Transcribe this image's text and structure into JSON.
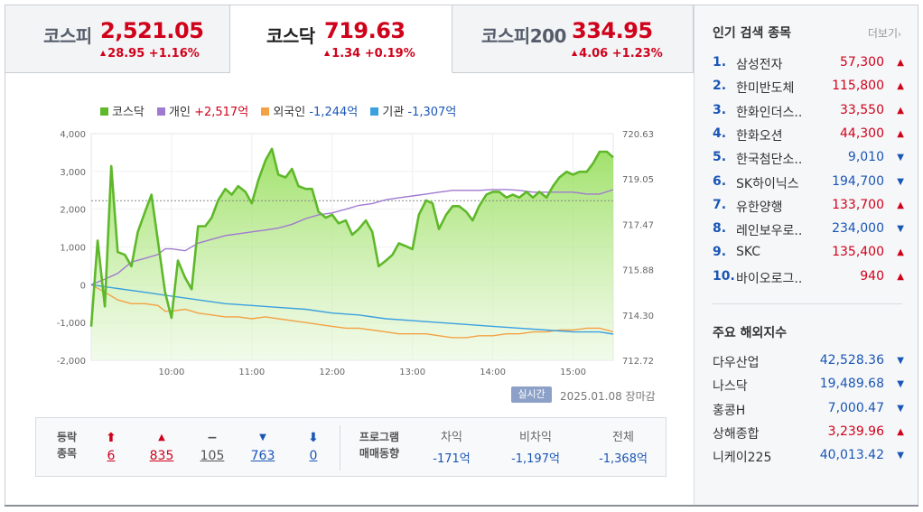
{
  "tabs": [
    {
      "name": "코스피",
      "value": "2,521.05",
      "change": "28.95 +1.16%",
      "dir": "up",
      "active": false
    },
    {
      "name": "코스닥",
      "value": "719.63",
      "change": "1.34 +0.19%",
      "dir": "up",
      "active": true
    },
    {
      "name": "코스피200",
      "value": "334.95",
      "change": "4.06 +1.23%",
      "dir": "up",
      "active": false
    }
  ],
  "legend": {
    "kosdaq": {
      "label": "코스닥",
      "color": "#5fb82a"
    },
    "individual": {
      "label": "개인",
      "value": "+2,517억",
      "color": "#a07ad0"
    },
    "foreign": {
      "label": "외국인",
      "value": "-1,244억",
      "color": "#f3a144"
    },
    "institution": {
      "label": "기관",
      "value": "-1,307억",
      "color": "#3aa0e0"
    }
  },
  "chart_data": {
    "type": "line",
    "x_ticks": [
      "10:00",
      "11:00",
      "12:00",
      "13:00",
      "14:00",
      "15:00"
    ],
    "y_left_ticks": [
      "4,000",
      "3,000",
      "2,000",
      "1,000",
      "0",
      "-1,000",
      "-2,000"
    ],
    "y_left_range": [
      -2000,
      4000
    ],
    "y_right_ticks": [
      "720.63",
      "719.05",
      "717.47",
      "715.88",
      "714.30",
      "712.72"
    ],
    "y_right_range": [
      712.72,
      720.63
    ],
    "reference_level": 718.29,
    "series": [
      {
        "name": "코스닥",
        "axis": "right",
        "color": "#5fb82a",
        "x": [
          9.0,
          9.08,
          9.17,
          9.25,
          9.33,
          9.42,
          9.5,
          9.58,
          9.67,
          9.75,
          9.83,
          9.92,
          10.0,
          10.08,
          10.17,
          10.25,
          10.33,
          10.42,
          10.5,
          10.58,
          10.67,
          10.75,
          10.83,
          10.92,
          11.0,
          11.08,
          11.17,
          11.25,
          11.33,
          11.42,
          11.5,
          11.58,
          11.67,
          11.75,
          11.83,
          11.92,
          12.0,
          12.08,
          12.17,
          12.25,
          12.33,
          12.42,
          12.5,
          12.58,
          12.67,
          12.75,
          12.83,
          12.92,
          13.0,
          13.08,
          13.17,
          13.25,
          13.33,
          13.42,
          13.5,
          13.58,
          13.67,
          13.75,
          13.83,
          13.92,
          14.0,
          14.08,
          14.17,
          14.25,
          14.33,
          14.42,
          14.5,
          14.58,
          14.67,
          14.75,
          14.83,
          14.92,
          15.0,
          15.08,
          15.17,
          15.25,
          15.33,
          15.42,
          15.5
        ],
        "y": [
          713.9,
          716.9,
          714.6,
          719.5,
          716.5,
          716.4,
          716.0,
          717.2,
          717.9,
          718.5,
          716.9,
          715.1,
          714.2,
          716.2,
          715.6,
          715.2,
          717.4,
          717.4,
          717.7,
          718.3,
          718.7,
          718.5,
          718.8,
          718.6,
          718.2,
          719.0,
          719.7,
          720.1,
          719.2,
          719.1,
          719.4,
          718.8,
          718.7,
          718.7,
          717.9,
          717.7,
          717.8,
          717.5,
          717.6,
          717.1,
          717.3,
          717.6,
          717.2,
          716.0,
          716.2,
          716.4,
          716.8,
          716.7,
          716.6,
          717.8,
          718.3,
          718.2,
          717.3,
          717.8,
          718.1,
          718.1,
          717.9,
          717.6,
          718.1,
          718.5,
          718.6,
          718.6,
          718.4,
          718.5,
          718.4,
          718.6,
          718.4,
          718.6,
          718.4,
          718.8,
          719.1,
          719.3,
          719.2,
          719.3,
          719.3,
          719.6,
          720.0,
          720.0,
          719.8
        ]
      },
      {
        "name": "개인",
        "value": "+2,517억",
        "axis": "left",
        "color": "#a07ad0",
        "x": [
          9.0,
          9.17,
          9.33,
          9.5,
          9.67,
          9.83,
          9.92,
          10.0,
          10.17,
          10.33,
          10.5,
          10.67,
          10.83,
          11.0,
          11.17,
          11.33,
          11.5,
          11.67,
          11.83,
          12.0,
          12.17,
          12.33,
          12.5,
          12.67,
          12.83,
          13.0,
          13.17,
          13.33,
          13.5,
          13.67,
          13.83,
          14.0,
          14.17,
          14.33,
          14.5,
          14.67,
          14.83,
          15.0,
          15.17,
          15.33,
          15.5
        ],
        "y": [
          0,
          150,
          300,
          600,
          700,
          800,
          950,
          950,
          900,
          1100,
          1200,
          1300,
          1350,
          1400,
          1450,
          1500,
          1600,
          1750,
          1850,
          1900,
          2000,
          2100,
          2150,
          2250,
          2300,
          2350,
          2400,
          2450,
          2500,
          2500,
          2500,
          2520,
          2520,
          2500,
          2450,
          2450,
          2450,
          2450,
          2400,
          2400,
          2517
        ]
      },
      {
        "name": "외국인",
        "value": "-1,244억",
        "axis": "left",
        "color": "#f3a144",
        "x": [
          9.0,
          9.17,
          9.33,
          9.5,
          9.67,
          9.83,
          9.92,
          10.0,
          10.17,
          10.33,
          10.5,
          10.67,
          10.83,
          11.0,
          11.17,
          11.33,
          11.5,
          11.67,
          11.83,
          12.0,
          12.17,
          12.33,
          12.5,
          12.67,
          12.83,
          13.0,
          13.17,
          13.33,
          13.5,
          13.67,
          13.83,
          14.0,
          14.17,
          14.33,
          14.5,
          14.67,
          14.83,
          15.0,
          15.17,
          15.33,
          15.5
        ],
        "y": [
          0,
          -200,
          -400,
          -500,
          -500,
          -550,
          -700,
          -700,
          -650,
          -750,
          -800,
          -850,
          -850,
          -900,
          -850,
          -900,
          -950,
          -1000,
          -1050,
          -1100,
          -1150,
          -1150,
          -1200,
          -1250,
          -1300,
          -1300,
          -1300,
          -1350,
          -1400,
          -1400,
          -1350,
          -1350,
          -1300,
          -1300,
          -1250,
          -1250,
          -1200,
          -1200,
          -1150,
          -1150,
          -1244
        ]
      },
      {
        "name": "기관",
        "value": "-1,307억",
        "axis": "left",
        "color": "#3aa0e0",
        "x": [
          9.0,
          9.33,
          9.67,
          10.0,
          10.33,
          10.67,
          11.0,
          11.33,
          11.67,
          12.0,
          12.33,
          12.67,
          13.0,
          13.33,
          13.67,
          14.0,
          14.33,
          14.67,
          15.0,
          15.33,
          15.5
        ],
        "y": [
          0,
          -100,
          -200,
          -300,
          -400,
          -500,
          -550,
          -600,
          -650,
          -750,
          -800,
          -900,
          -950,
          -1000,
          -1050,
          -1100,
          -1150,
          -1200,
          -1250,
          -1250,
          -1307
        ]
      }
    ]
  },
  "status": {
    "badge": "실시간",
    "date": "2025.01.08",
    "state": "장마감"
  },
  "stats": {
    "label_line1": "등락",
    "label_line2": "종목",
    "cols": [
      {
        "sym": "⬆",
        "num": "6",
        "tone": "red"
      },
      {
        "sym": "▲",
        "num": "835",
        "tone": "red"
      },
      {
        "sym": "−",
        "num": "105",
        "tone": "gray"
      },
      {
        "sym": "▼",
        "num": "763",
        "tone": "blue"
      },
      {
        "sym": "⬇",
        "num": "0",
        "tone": "blue"
      }
    ],
    "program_line1": "프로그램",
    "program_line2": "매매동향",
    "program": [
      {
        "head": "차익",
        "value": "-171억"
      },
      {
        "head": "비차익",
        "value": "-1,197억"
      },
      {
        "head": "전체",
        "value": "-1,368억"
      }
    ]
  },
  "popular": {
    "title": "인기 검색 종목",
    "more": "더보기",
    "items": [
      {
        "no": "1.",
        "name": "삼성전자",
        "price": "57,300",
        "dir": "up"
      },
      {
        "no": "2.",
        "name": "한미반도체",
        "price": "115,800",
        "dir": "up"
      },
      {
        "no": "3.",
        "name": "한화인더스..",
        "price": "33,550",
        "dir": "up"
      },
      {
        "no": "4.",
        "name": "한화오션",
        "price": "44,300",
        "dir": "up"
      },
      {
        "no": "5.",
        "name": "한국첨단소..",
        "price": "9,010",
        "dir": "down"
      },
      {
        "no": "6.",
        "name": "SK하이닉스",
        "price": "194,700",
        "dir": "down"
      },
      {
        "no": "7.",
        "name": "유한양행",
        "price": "133,700",
        "dir": "up"
      },
      {
        "no": "8.",
        "name": "레인보우로..",
        "price": "234,000",
        "dir": "down"
      },
      {
        "no": "9.",
        "name": "SKC",
        "price": "135,400",
        "dir": "up"
      },
      {
        "no": "10.",
        "name": "바이오로그..",
        "price": "940",
        "dir": "up"
      }
    ]
  },
  "overseas": {
    "title": "주요 해외지수",
    "items": [
      {
        "name": "다우산업",
        "value": "42,528.36",
        "dir": "down"
      },
      {
        "name": "나스닥",
        "value": "19,489.68",
        "dir": "down"
      },
      {
        "name": "홍콩H",
        "value": "7,000.47",
        "dir": "down"
      },
      {
        "name": "상해종합",
        "value": "3,239.96",
        "dir": "up"
      },
      {
        "name": "니케이225",
        "value": "40,013.42",
        "dir": "down"
      }
    ]
  }
}
